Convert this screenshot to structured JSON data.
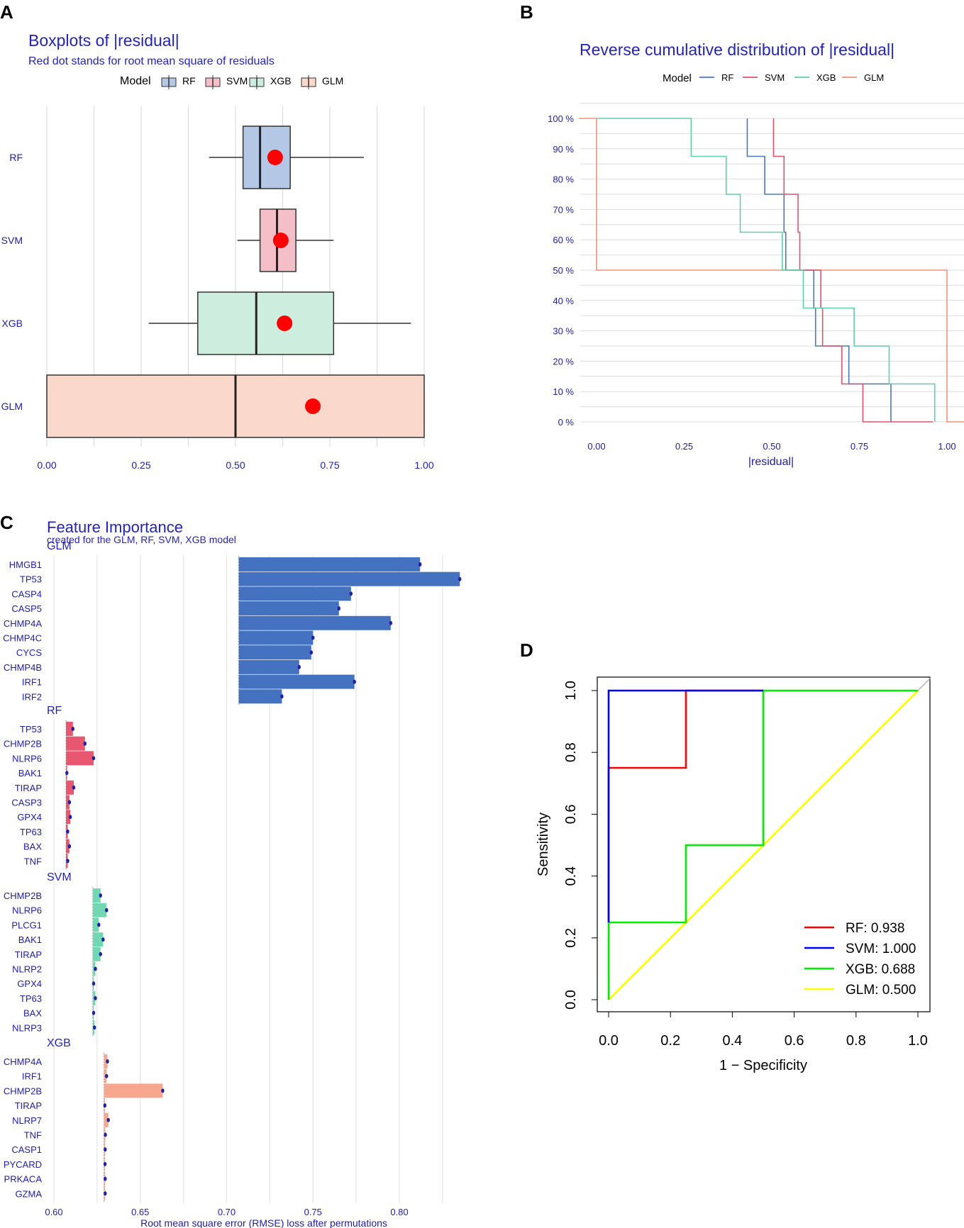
{
  "colors": {
    "axis_text": "#2020a0",
    "title": "#2424b0",
    "grid": "#dcdcdc",
    "RF": "#4a78b4",
    "SVM": "#e2506a",
    "XGB": "#5fcfa8",
    "GLM": "#f0907a",
    "RF_fill": "#b4c8e6",
    "SVM_fill": "#f5bfca",
    "XGB_fill": "#cdeedf",
    "GLM_fill": "#fbd8cc",
    "dot": "#ff0000",
    "roc_RF": "#ff0000",
    "roc_SVM": "#0000ff",
    "roc_XGB": "#00ee00",
    "roc_GLM": "#ffff00",
    "fi_GLM": "#4472c0",
    "fi_RF": "#e8566f",
    "fi_XGB": "#72d8b4",
    "fi_SVM": "#f7a78e"
  },
  "chart_data": [
    {
      "panel": "A",
      "type": "boxplot",
      "title": "Boxplots of |residual|",
      "subtitle": "Red dot stands for root mean square of residuals",
      "legend_title": "Model",
      "legend": [
        "RF",
        "SVM",
        "XGB",
        "GLM"
      ],
      "xlim": [
        0,
        1
      ],
      "xticks": [
        "0.00",
        "0.25",
        "0.50",
        "0.75",
        "1.00"
      ],
      "series": [
        {
          "name": "RF",
          "whisker_low": 0.43,
          "q1": 0.52,
          "median": 0.565,
          "q3": 0.645,
          "whisker_high": 0.84,
          "rms": 0.605
        },
        {
          "name": "SVM",
          "whisker_low": 0.505,
          "q1": 0.565,
          "median": 0.61,
          "q3": 0.66,
          "whisker_high": 0.76,
          "rms": 0.62
        },
        {
          "name": "XGB",
          "whisker_low": 0.27,
          "q1": 0.4,
          "median": 0.555,
          "q3": 0.76,
          "whisker_high": 0.965,
          "rms": 0.63
        },
        {
          "name": "GLM",
          "whisker_low": 0.0,
          "q1": 0.0,
          "median": 0.5,
          "q3": 1.0,
          "whisker_high": 1.0,
          "rms": 0.705
        }
      ]
    },
    {
      "panel": "B",
      "type": "line",
      "title": "Reverse cumulative distribution of |residual|",
      "xlabel": "|residual|",
      "legend_title": "Model",
      "legend": [
        "RF",
        "SVM",
        "XGB",
        "GLM"
      ],
      "xlim": [
        0,
        1
      ],
      "ylim": [
        0,
        100
      ],
      "xticks": [
        "0.00",
        "0.25",
        "0.50",
        "0.75",
        "1.00"
      ],
      "yticks": [
        "0 %",
        "10 %",
        "20 %",
        "30 %",
        "40 %",
        "50 %",
        "60 %",
        "70 %",
        "80 %",
        "90 %",
        "100 %"
      ],
      "series": [
        {
          "name": "GLM",
          "points": [
            [
              -0.05,
              100
            ],
            [
              0.0,
              100
            ],
            [
              0.0,
              50
            ],
            [
              1.0,
              50
            ],
            [
              1.0,
              0
            ],
            [
              1.05,
              0
            ]
          ]
        },
        {
          "name": "RF",
          "points": [
            [
              0.43,
              100
            ],
            [
              0.43,
              87.5
            ],
            [
              0.48,
              87.5
            ],
            [
              0.48,
              75
            ],
            [
              0.535,
              75
            ],
            [
              0.535,
              62.5
            ],
            [
              0.54,
              62.5
            ],
            [
              0.54,
              50
            ],
            [
              0.62,
              50
            ],
            [
              0.62,
              37.5
            ],
            [
              0.625,
              37.5
            ],
            [
              0.625,
              25
            ],
            [
              0.72,
              25
            ],
            [
              0.72,
              12.5
            ],
            [
              0.84,
              12.5
            ],
            [
              0.84,
              0
            ]
          ]
        },
        {
          "name": "SVM",
          "points": [
            [
              0.505,
              100
            ],
            [
              0.505,
              87.5
            ],
            [
              0.535,
              87.5
            ],
            [
              0.535,
              75
            ],
            [
              0.575,
              75
            ],
            [
              0.575,
              62.5
            ],
            [
              0.58,
              62.5
            ],
            [
              0.58,
              50
            ],
            [
              0.64,
              50
            ],
            [
              0.64,
              37.5
            ],
            [
              0.645,
              37.5
            ],
            [
              0.645,
              25
            ],
            [
              0.7,
              25
            ],
            [
              0.7,
              12.5
            ],
            [
              0.76,
              12.5
            ],
            [
              0.76,
              0
            ],
            [
              0.96,
              0
            ]
          ]
        },
        {
          "name": "XGB",
          "points": [
            [
              0.0,
              100
            ],
            [
              0.27,
              100
            ],
            [
              0.27,
              87.5
            ],
            [
              0.37,
              87.5
            ],
            [
              0.37,
              75
            ],
            [
              0.41,
              75
            ],
            [
              0.41,
              62.5
            ],
            [
              0.53,
              62.5
            ],
            [
              0.53,
              50
            ],
            [
              0.59,
              50
            ],
            [
              0.59,
              37.5
            ],
            [
              0.735,
              37.5
            ],
            [
              0.735,
              25
            ],
            [
              0.835,
              25
            ],
            [
              0.835,
              12.5
            ],
            [
              0.965,
              12.5
            ],
            [
              0.965,
              0
            ]
          ]
        }
      ]
    },
    {
      "panel": "C",
      "type": "bar",
      "title": "Feature Importance",
      "subtitle": "created for the GLM, RF, SVM, XGB model",
      "xlabel": "Root mean square error (RMSE) loss after permutations",
      "xlim": [
        0.5995,
        0.8255
      ],
      "xticks": [
        "0.60",
        "0.65",
        "0.70",
        "0.75",
        "0.80"
      ],
      "facets": [
        {
          "name": "GLM",
          "baseline": 0.707,
          "features": [
            "HMGB1",
            "TP53",
            "CASP4",
            "CASP5",
            "CHMP4A",
            "CHMP4C",
            "CYCS",
            "CHMP4B",
            "IRF1",
            "IRF2"
          ],
          "values": [
            0.812,
            0.835,
            0.772,
            0.765,
            0.795,
            0.75,
            0.749,
            0.742,
            0.774,
            0.732
          ]
        },
        {
          "name": "RF",
          "baseline": 0.607,
          "features": [
            "TP53",
            "CHMP2B",
            "NLRP6",
            "BAK1",
            "TIRAP",
            "CASP3",
            "GPX4",
            "TP63",
            "BAX",
            "TNF"
          ],
          "values": [
            0.611,
            0.618,
            0.623,
            0.6075,
            0.6115,
            0.609,
            0.6095,
            0.608,
            0.609,
            0.608
          ]
        },
        {
          "name": "SVM",
          "baseline": 0.6225,
          "features": [
            "CHMP2B",
            "NLRP6",
            "PLCG1",
            "BAK1",
            "TIRAP",
            "NLRP2",
            "GPX4",
            "TP63",
            "BAX",
            "NLRP3"
          ],
          "values": [
            0.627,
            0.6305,
            0.626,
            0.6285,
            0.627,
            0.624,
            0.623,
            0.624,
            0.623,
            0.6235
          ]
        },
        {
          "name": "XGB",
          "baseline": 0.629,
          "features": [
            "CHMP4A",
            "IRF1",
            "CHMP2B",
            "TIRAP",
            "NLRP7",
            "TNF",
            "CASP1",
            "PYCARD",
            "PRKACA",
            "GZMA"
          ],
          "values": [
            0.631,
            0.6305,
            0.663,
            0.6295,
            0.6315,
            0.6298,
            0.6297,
            0.6296,
            0.6297,
            0.6297
          ]
        }
      ]
    },
    {
      "panel": "D",
      "type": "line",
      "xlabel": "1 − Specificity",
      "ylabel": "Sensitivity",
      "xlim": [
        0,
        1
      ],
      "ylim": [
        0,
        1
      ],
      "xticks": [
        "0.0",
        "0.2",
        "0.4",
        "0.6",
        "0.8",
        "1.0"
      ],
      "yticks": [
        "0.0",
        "0.2",
        "0.4",
        "0.6",
        "0.8",
        "1.0"
      ],
      "series": [
        {
          "name": "GLM",
          "label": "GLM: 0.500",
          "points": [
            [
              0,
              0
            ],
            [
              1,
              1
            ]
          ]
        },
        {
          "name": "XGB",
          "label": "XGB: 0.688",
          "points": [
            [
              0,
              0
            ],
            [
              0,
              0.25
            ],
            [
              0.25,
              0.25
            ],
            [
              0.25,
              0.5
            ],
            [
              0.5,
              0.5
            ],
            [
              0.5,
              1
            ],
            [
              1,
              1
            ]
          ]
        },
        {
          "name": "RF",
          "label": "RF: 0.938",
          "points": [
            [
              0,
              0.25
            ],
            [
              0,
              0.75
            ],
            [
              0.25,
              0.75
            ],
            [
              0.25,
              1
            ],
            [
              0.5,
              1
            ]
          ]
        },
        {
          "name": "SVM",
          "label": "SVM: 1.000",
          "points": [
            [
              0,
              0.25
            ],
            [
              0,
              1
            ],
            [
              0.5,
              1
            ]
          ]
        }
      ]
    }
  ],
  "panel_letters": [
    "A",
    "B",
    "C",
    "D"
  ]
}
